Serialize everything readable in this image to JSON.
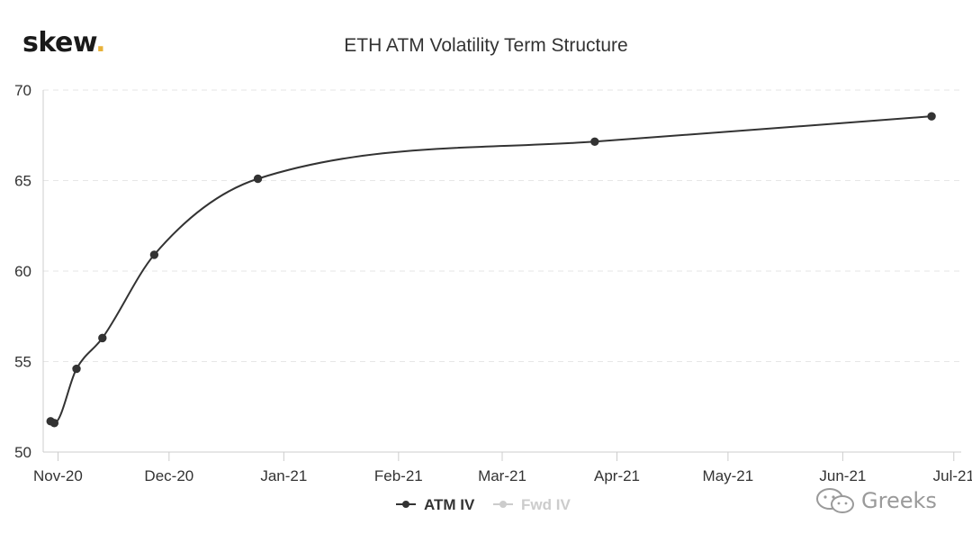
{
  "brand": {
    "logo_text": "skew",
    "logo_dot": "."
  },
  "watermark": {
    "text": "Greeks",
    "icon": "wechat-icon"
  },
  "colors": {
    "line": "#333333",
    "gridline": "#e6e6e6",
    "axis": "#cccccc",
    "accent": "#e8b23a",
    "legend_inactive": "#cccccc"
  },
  "chart_data": {
    "type": "line",
    "title": "ETH ATM Volatility Term Structure",
    "xlabel": "",
    "ylabel": "",
    "ylim": [
      50,
      70
    ],
    "yticks": [
      50,
      55,
      60,
      65,
      70
    ],
    "xlim": [
      "2020-10-28",
      "2021-07-03"
    ],
    "xticks": [
      {
        "label": "Nov-20",
        "date": "2020-11-01"
      },
      {
        "label": "Dec-20",
        "date": "2020-12-01"
      },
      {
        "label": "Jan-21",
        "date": "2021-01-01"
      },
      {
        "label": "Feb-21",
        "date": "2021-02-01"
      },
      {
        "label": "Mar-21",
        "date": "2021-03-01"
      },
      {
        "label": "Apr-21",
        "date": "2021-04-01"
      },
      {
        "label": "May-21",
        "date": "2021-05-01"
      },
      {
        "label": "Jun-21",
        "date": "2021-06-01"
      },
      {
        "label": "Jul-21",
        "date": "2021-07-01"
      }
    ],
    "grid": true,
    "legend_placement": "bottom-center",
    "series": [
      {
        "name": "ATM IV",
        "active": true,
        "x": [
          "2020-10-30",
          "2020-10-31",
          "2020-11-06",
          "2020-11-13",
          "2020-11-27",
          "2020-12-25",
          "2021-03-26",
          "2021-06-25"
        ],
        "values": [
          51.7,
          51.6,
          54.6,
          56.3,
          60.9,
          65.1,
          67.15,
          68.55
        ]
      },
      {
        "name": "Fwd IV",
        "active": false,
        "x": [],
        "values": []
      }
    ]
  }
}
